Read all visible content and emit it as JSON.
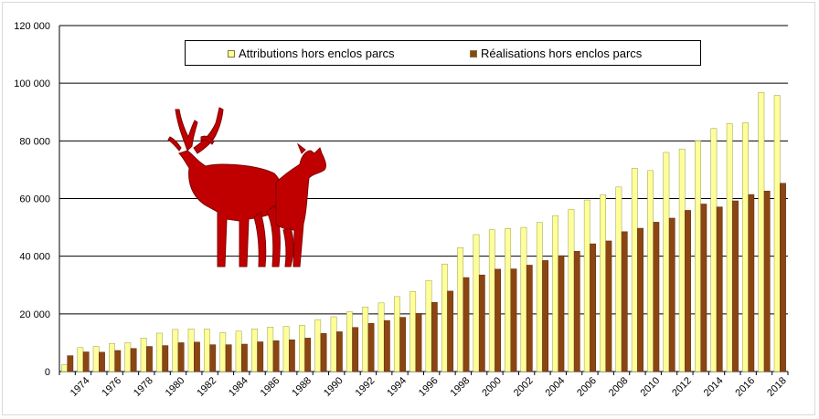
{
  "chart_data": {
    "type": "bar",
    "title": "",
    "xlabel": "",
    "ylabel": "",
    "ylim": [
      0,
      120000
    ],
    "yticks": [
      0,
      20000,
      40000,
      60000,
      80000,
      100000,
      120000
    ],
    "ytick_labels": [
      "0",
      "20 000",
      "40 000",
      "60 000",
      "80 000",
      "100 000",
      "120 000"
    ],
    "grid": "horizontal",
    "legend_position": "top-center",
    "categories": [
      "1973",
      "1974",
      "1975",
      "1976",
      "1977",
      "1978",
      "1979",
      "1980",
      "1981",
      "1982",
      "1983",
      "1984",
      "1985",
      "1986",
      "1987",
      "1988",
      "1989",
      "1990",
      "1991",
      "1992",
      "1993",
      "1994",
      "1995",
      "1996",
      "1997",
      "1998",
      "1999",
      "2000",
      "2001",
      "2002",
      "2003",
      "2004",
      "2005",
      "2006",
      "2007",
      "2008",
      "2009",
      "2010",
      "2011",
      "2012",
      "2013",
      "2014",
      "2015",
      "2016",
      "2017",
      "2018"
    ],
    "xtick_labels": [
      "1974",
      "1976",
      "1978",
      "1980",
      "1982",
      "1984",
      "1986",
      "1988",
      "1990",
      "1992",
      "1994",
      "1996",
      "1998",
      "2000",
      "2002",
      "2004",
      "2006",
      "2008",
      "2010",
      "2012",
      "2014",
      "2016",
      "2018"
    ],
    "series": [
      {
        "name": "Attributions hors enclos parcs",
        "color": "#ffff99",
        "values": [
          2300,
          8300,
          8700,
          9700,
          10000,
          11600,
          13300,
          14600,
          14800,
          14700,
          13500,
          14000,
          14800,
          15400,
          15600,
          16000,
          18000,
          19000,
          20700,
          22400,
          23800,
          26000,
          27800,
          31600,
          37300,
          43000,
          47500,
          49200,
          49600,
          50000,
          51700,
          54100,
          56300,
          59500,
          61300,
          64000,
          70500,
          69700,
          76000,
          77200,
          80000,
          84300,
          86000,
          86300,
          96800,
          95800
        ]
      },
      {
        "name": "Réalisations hors enclos parcs",
        "color": "#8b4513",
        "values": [
          5500,
          6800,
          6700,
          7300,
          8000,
          8700,
          9000,
          10000,
          10200,
          9300,
          9300,
          9500,
          10300,
          10700,
          11000,
          11600,
          13200,
          13800,
          15300,
          16700,
          17700,
          18800,
          20200,
          24000,
          27900,
          32600,
          33500,
          35500,
          35600,
          36900,
          38500,
          40200,
          41700,
          44300,
          45300,
          48500,
          49700,
          51800,
          53200,
          55900,
          58100,
          57100,
          59200,
          61400,
          62600,
          65300
        ]
      }
    ]
  }
}
